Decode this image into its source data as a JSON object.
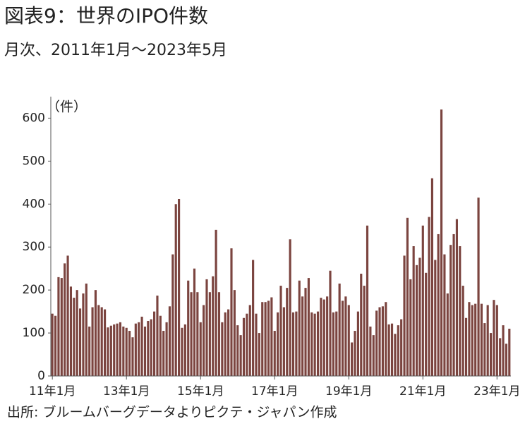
{
  "chart_data": {
    "type": "bar",
    "title": "図表9：世界のIPO件数",
    "subtitle": "月次、2011年1月～2023年5月",
    "y_label": "（件）",
    "source": "出所: ブルームバーグデータよりピクテ・ジャパン作成",
    "color": "#7b443f",
    "grid": false,
    "ylim": [
      0,
      650
    ],
    "yticks": [
      0,
      100,
      200,
      300,
      400,
      500,
      600
    ],
    "categories": [
      "11年1月",
      null,
      null,
      null,
      null,
      null,
      null,
      null,
      null,
      null,
      null,
      null,
      null,
      null,
      null,
      null,
      null,
      null,
      null,
      null,
      null,
      null,
      null,
      null,
      "13年1月",
      null,
      null,
      null,
      null,
      null,
      null,
      null,
      null,
      null,
      null,
      null,
      null,
      null,
      null,
      null,
      null,
      null,
      null,
      null,
      null,
      null,
      null,
      null,
      "15年1月",
      null,
      null,
      null,
      null,
      null,
      null,
      null,
      null,
      null,
      null,
      null,
      null,
      null,
      null,
      null,
      null,
      null,
      null,
      null,
      null,
      null,
      null,
      null,
      "17年1月",
      null,
      null,
      null,
      null,
      null,
      null,
      null,
      null,
      null,
      null,
      null,
      null,
      null,
      null,
      null,
      null,
      null,
      null,
      null,
      null,
      null,
      null,
      null,
      "19年1月",
      null,
      null,
      null,
      null,
      null,
      null,
      null,
      null,
      null,
      null,
      null,
      null,
      null,
      null,
      null,
      null,
      null,
      null,
      null,
      null,
      null,
      null,
      null,
      "21年1月",
      null,
      null,
      null,
      null,
      null,
      null,
      null,
      null,
      null,
      null,
      null,
      null,
      null,
      null,
      null,
      null,
      null,
      null,
      null,
      null,
      null,
      null,
      null,
      "23年1月",
      null,
      null,
      null,
      null
    ],
    "values": [
      145,
      140,
      230,
      228,
      262,
      280,
      208,
      182,
      200,
      157,
      192,
      215,
      115,
      160,
      200,
      165,
      160,
      155,
      113,
      117,
      120,
      122,
      125,
      115,
      112,
      105,
      90,
      122,
      125,
      138,
      115,
      128,
      132,
      150,
      187,
      140,
      105,
      125,
      162,
      283,
      400,
      412,
      112,
      120,
      222,
      195,
      250,
      195,
      125,
      165,
      225,
      195,
      232,
      340,
      195,
      125,
      148,
      155,
      297,
      200,
      118,
      95,
      135,
      145,
      165,
      270,
      145,
      100,
      172,
      172,
      175,
      183,
      105,
      148,
      210,
      160,
      205,
      318,
      148,
      150,
      222,
      185,
      205,
      228,
      148,
      145,
      150,
      182,
      178,
      185,
      245,
      148,
      150,
      215,
      175,
      185,
      165,
      78,
      105,
      150,
      238,
      210,
      350,
      115,
      95,
      152,
      160,
      162,
      172,
      120,
      122,
      98,
      118,
      132,
      280,
      368,
      225,
      302,
      258,
      275,
      350,
      240,
      370,
      460,
      270,
      330,
      620,
      283,
      192,
      305,
      330,
      365,
      302,
      210,
      135,
      172,
      165,
      168,
      415,
      168,
      123,
      165,
      100,
      177,
      165,
      88,
      118,
      75,
      110
    ]
  }
}
